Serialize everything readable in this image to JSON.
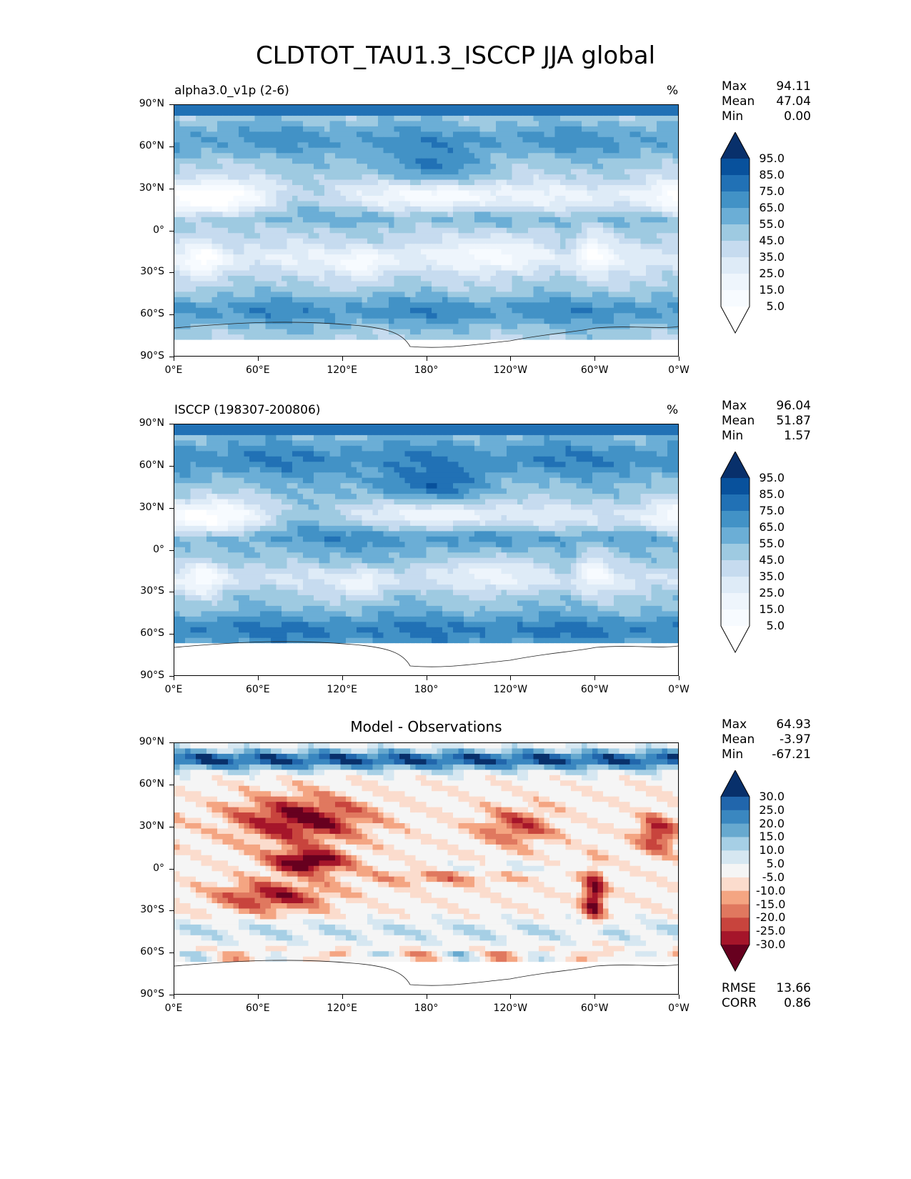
{
  "title": "CLDTOT_TAU1.3_ISCCP JJA global",
  "lat_labels": [
    "90°N",
    "60°N",
    "30°N",
    "0°",
    "30°S",
    "60°S",
    "90°S"
  ],
  "lon_labels": [
    "0°E",
    "60°E",
    "120°E",
    "180°",
    "120°W",
    "60°W",
    "0°W"
  ],
  "panels": [
    {
      "title": "alpha3.0_v1p (2-6)",
      "unit": "%",
      "stats": [
        {
          "k": "Max",
          "v": "94.11"
        },
        {
          "k": "Mean",
          "v": "47.04"
        },
        {
          "k": "Min",
          "v": "0.00"
        }
      ],
      "colorbar": {
        "labels": [
          "95.0",
          "85.0",
          "75.0",
          "65.0",
          "55.0",
          "45.0",
          "35.0",
          "25.0",
          "15.0",
          "5.0"
        ],
        "colors": [
          "#08306b",
          "#08519c",
          "#2171b5",
          "#4292c6",
          "#6baed6",
          "#9ecae1",
          "#c6dbef",
          "#deebf7",
          "#eef5fc",
          "#f7fbff",
          "#ffffff"
        ]
      }
    },
    {
      "title": "ISCCP (198307-200806)",
      "unit": "%",
      "stats": [
        {
          "k": "Max",
          "v": "96.04"
        },
        {
          "k": "Mean",
          "v": "51.87"
        },
        {
          "k": "Min",
          "v": "1.57"
        }
      ],
      "colorbar": {
        "labels": [
          "95.0",
          "85.0",
          "75.0",
          "65.0",
          "55.0",
          "45.0",
          "35.0",
          "25.0",
          "15.0",
          "5.0"
        ],
        "colors": [
          "#08306b",
          "#08519c",
          "#2171b5",
          "#4292c6",
          "#6baed6",
          "#9ecae1",
          "#c6dbef",
          "#deebf7",
          "#eef5fc",
          "#f7fbff",
          "#ffffff"
        ]
      }
    },
    {
      "title": "Model - Observations",
      "unit": "",
      "stats": [
        {
          "k": "Max",
          "v": "64.93"
        },
        {
          "k": "Mean",
          "v": "-3.97"
        },
        {
          "k": "Min",
          "v": "-67.21"
        }
      ],
      "colorbar": {
        "labels": [
          "30.0",
          "25.0",
          "20.0",
          "15.0",
          "10.0",
          "5.0",
          "-5.0",
          "-10.0",
          "-15.0",
          "-20.0",
          "-25.0",
          "-30.0"
        ],
        "colors": [
          "#08306b",
          "#2166ac",
          "#3a87c0",
          "#67a9cf",
          "#a6cfe5",
          "#d6e7f1",
          "#f5f5f5",
          "#fbdccd",
          "#f4a582",
          "#e0785f",
          "#c8443d",
          "#a5152a",
          "#67001f"
        ]
      },
      "metrics": [
        {
          "k": "RMSE",
          "v": "13.66"
        },
        {
          "k": "CORR",
          "v": "0.86"
        }
      ]
    }
  ]
}
